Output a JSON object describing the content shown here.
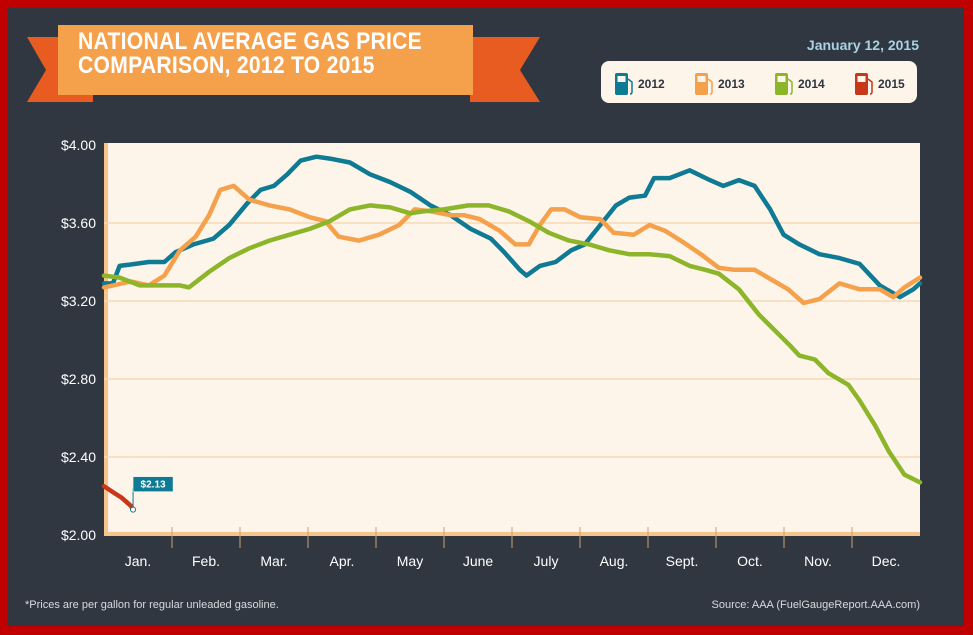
{
  "colors": {
    "2012": "#0f7a93",
    "2013": "#f5a04a",
    "2014": "#8db52a",
    "2015": "#c9371a",
    "background": "#303741",
    "plot_bg": "#fdf4ea",
    "grid": "#f8d9b5",
    "banner": "#f5a04a",
    "banner_tail": "#e85c22",
    "border": "#c00000",
    "date": "#a9d3e3"
  },
  "header": {
    "title_line1": "NATIONAL AVERAGE GAS PRICE",
    "title_line2": "COMPARISON, 2012 TO 2015",
    "date": "January 12, 2015"
  },
  "legend": [
    {
      "label": "2012",
      "icon": "gas-pump-icon"
    },
    {
      "label": "2013",
      "icon": "gas-pump-icon"
    },
    {
      "label": "2014",
      "icon": "gas-pump-icon"
    },
    {
      "label": "2015",
      "icon": "gas-pump-icon"
    }
  ],
  "footer": {
    "note": "*Prices are per gallon for regular unleaded gasoline.",
    "source": "Source: AAA (FuelGaugeReport.AAA.com)"
  },
  "chart_data": {
    "type": "line",
    "title": "NATIONAL AVERAGE GAS PRICE COMPARISON, 2012 TO 2015",
    "xlabel": "",
    "ylabel": "",
    "x_unit": "day of year",
    "xlim": [
      0,
      365
    ],
    "ylim": [
      2.0,
      4.0
    ],
    "yticks": [
      2.0,
      2.4,
      2.8,
      3.2,
      3.6,
      4.0
    ],
    "ytick_labels": [
      "$2.00",
      "$2.40",
      "$2.80",
      "$3.20",
      "$3.60",
      "$4.00"
    ],
    "categories": [
      "Jan.",
      "Feb.",
      "Mar.",
      "Apr.",
      "May",
      "June",
      "July",
      "Aug.",
      "Sept.",
      "Oct.",
      "Nov.",
      "Dec."
    ],
    "grid": true,
    "legend_position": "top-right",
    "annotations": [
      {
        "series": "2015",
        "text": "$2.13",
        "x": 13,
        "y": 2.13
      }
    ],
    "series": [
      {
        "name": "2012",
        "x": [
          0,
          4,
          7,
          14,
          20,
          27,
          32,
          40,
          49,
          56,
          64,
          70,
          76,
          82,
          88,
          95,
          101,
          110,
          119,
          128,
          137,
          146,
          155,
          164,
          173,
          179,
          186,
          189,
          195,
          202,
          209,
          215,
          222,
          229,
          235,
          242,
          246,
          253,
          262,
          271,
          277,
          284,
          291,
          298,
          304,
          311,
          320,
          329,
          338,
          347,
          356,
          362,
          365
        ],
        "y": [
          3.29,
          3.29,
          3.38,
          3.39,
          3.4,
          3.4,
          3.45,
          3.49,
          3.52,
          3.59,
          3.7,
          3.77,
          3.79,
          3.85,
          3.92,
          3.94,
          3.93,
          3.91,
          3.85,
          3.81,
          3.76,
          3.69,
          3.64,
          3.57,
          3.52,
          3.45,
          3.36,
          3.33,
          3.38,
          3.4,
          3.46,
          3.49,
          3.59,
          3.69,
          3.73,
          3.74,
          3.83,
          3.83,
          3.87,
          3.82,
          3.79,
          3.82,
          3.79,
          3.67,
          3.54,
          3.49,
          3.44,
          3.42,
          3.39,
          3.28,
          3.22,
          3.26,
          3.29
        ]
      },
      {
        "name": "2013",
        "x": [
          0,
          12,
          20,
          27,
          34,
          41,
          47,
          52,
          58,
          65,
          74,
          83,
          92,
          99,
          105,
          114,
          123,
          132,
          139,
          146,
          155,
          161,
          168,
          177,
          184,
          190,
          195,
          200,
          206,
          213,
          222,
          228,
          237,
          244,
          251,
          258,
          267,
          275,
          282,
          291,
          300,
          306,
          313,
          320,
          329,
          338,
          347,
          353,
          358,
          365
        ],
        "y": [
          3.27,
          3.3,
          3.28,
          3.33,
          3.46,
          3.53,
          3.64,
          3.77,
          3.79,
          3.72,
          3.69,
          3.67,
          3.63,
          3.61,
          3.53,
          3.51,
          3.54,
          3.59,
          3.67,
          3.66,
          3.64,
          3.64,
          3.62,
          3.56,
          3.49,
          3.49,
          3.59,
          3.67,
          3.67,
          3.63,
          3.62,
          3.55,
          3.54,
          3.59,
          3.56,
          3.51,
          3.44,
          3.37,
          3.36,
          3.36,
          3.3,
          3.26,
          3.19,
          3.21,
          3.29,
          3.26,
          3.26,
          3.22,
          3.27,
          3.32
        ]
      },
      {
        "name": "2014",
        "x": [
          0,
          7,
          16,
          25,
          34,
          38,
          47,
          56,
          65,
          74,
          83,
          92,
          101,
          110,
          119,
          128,
          137,
          143,
          152,
          163,
          172,
          181,
          190,
          199,
          208,
          217,
          226,
          235,
          244,
          253,
          262,
          269,
          275,
          284,
          293,
          300,
          307,
          311,
          318,
          324,
          333,
          338,
          345,
          351,
          358,
          365
        ],
        "y": [
          3.33,
          3.32,
          3.28,
          3.28,
          3.28,
          3.27,
          3.35,
          3.42,
          3.47,
          3.51,
          3.54,
          3.57,
          3.61,
          3.67,
          3.69,
          3.68,
          3.65,
          3.66,
          3.67,
          3.69,
          3.69,
          3.66,
          3.61,
          3.55,
          3.51,
          3.49,
          3.46,
          3.44,
          3.44,
          3.43,
          3.38,
          3.36,
          3.34,
          3.26,
          3.13,
          3.05,
          2.97,
          2.92,
          2.9,
          2.83,
          2.77,
          2.69,
          2.56,
          2.43,
          2.31,
          2.27
        ]
      },
      {
        "name": "2015",
        "x": [
          0,
          4,
          8,
          12,
          13
        ],
        "y": [
          2.25,
          2.22,
          2.19,
          2.15,
          2.13
        ]
      }
    ]
  }
}
